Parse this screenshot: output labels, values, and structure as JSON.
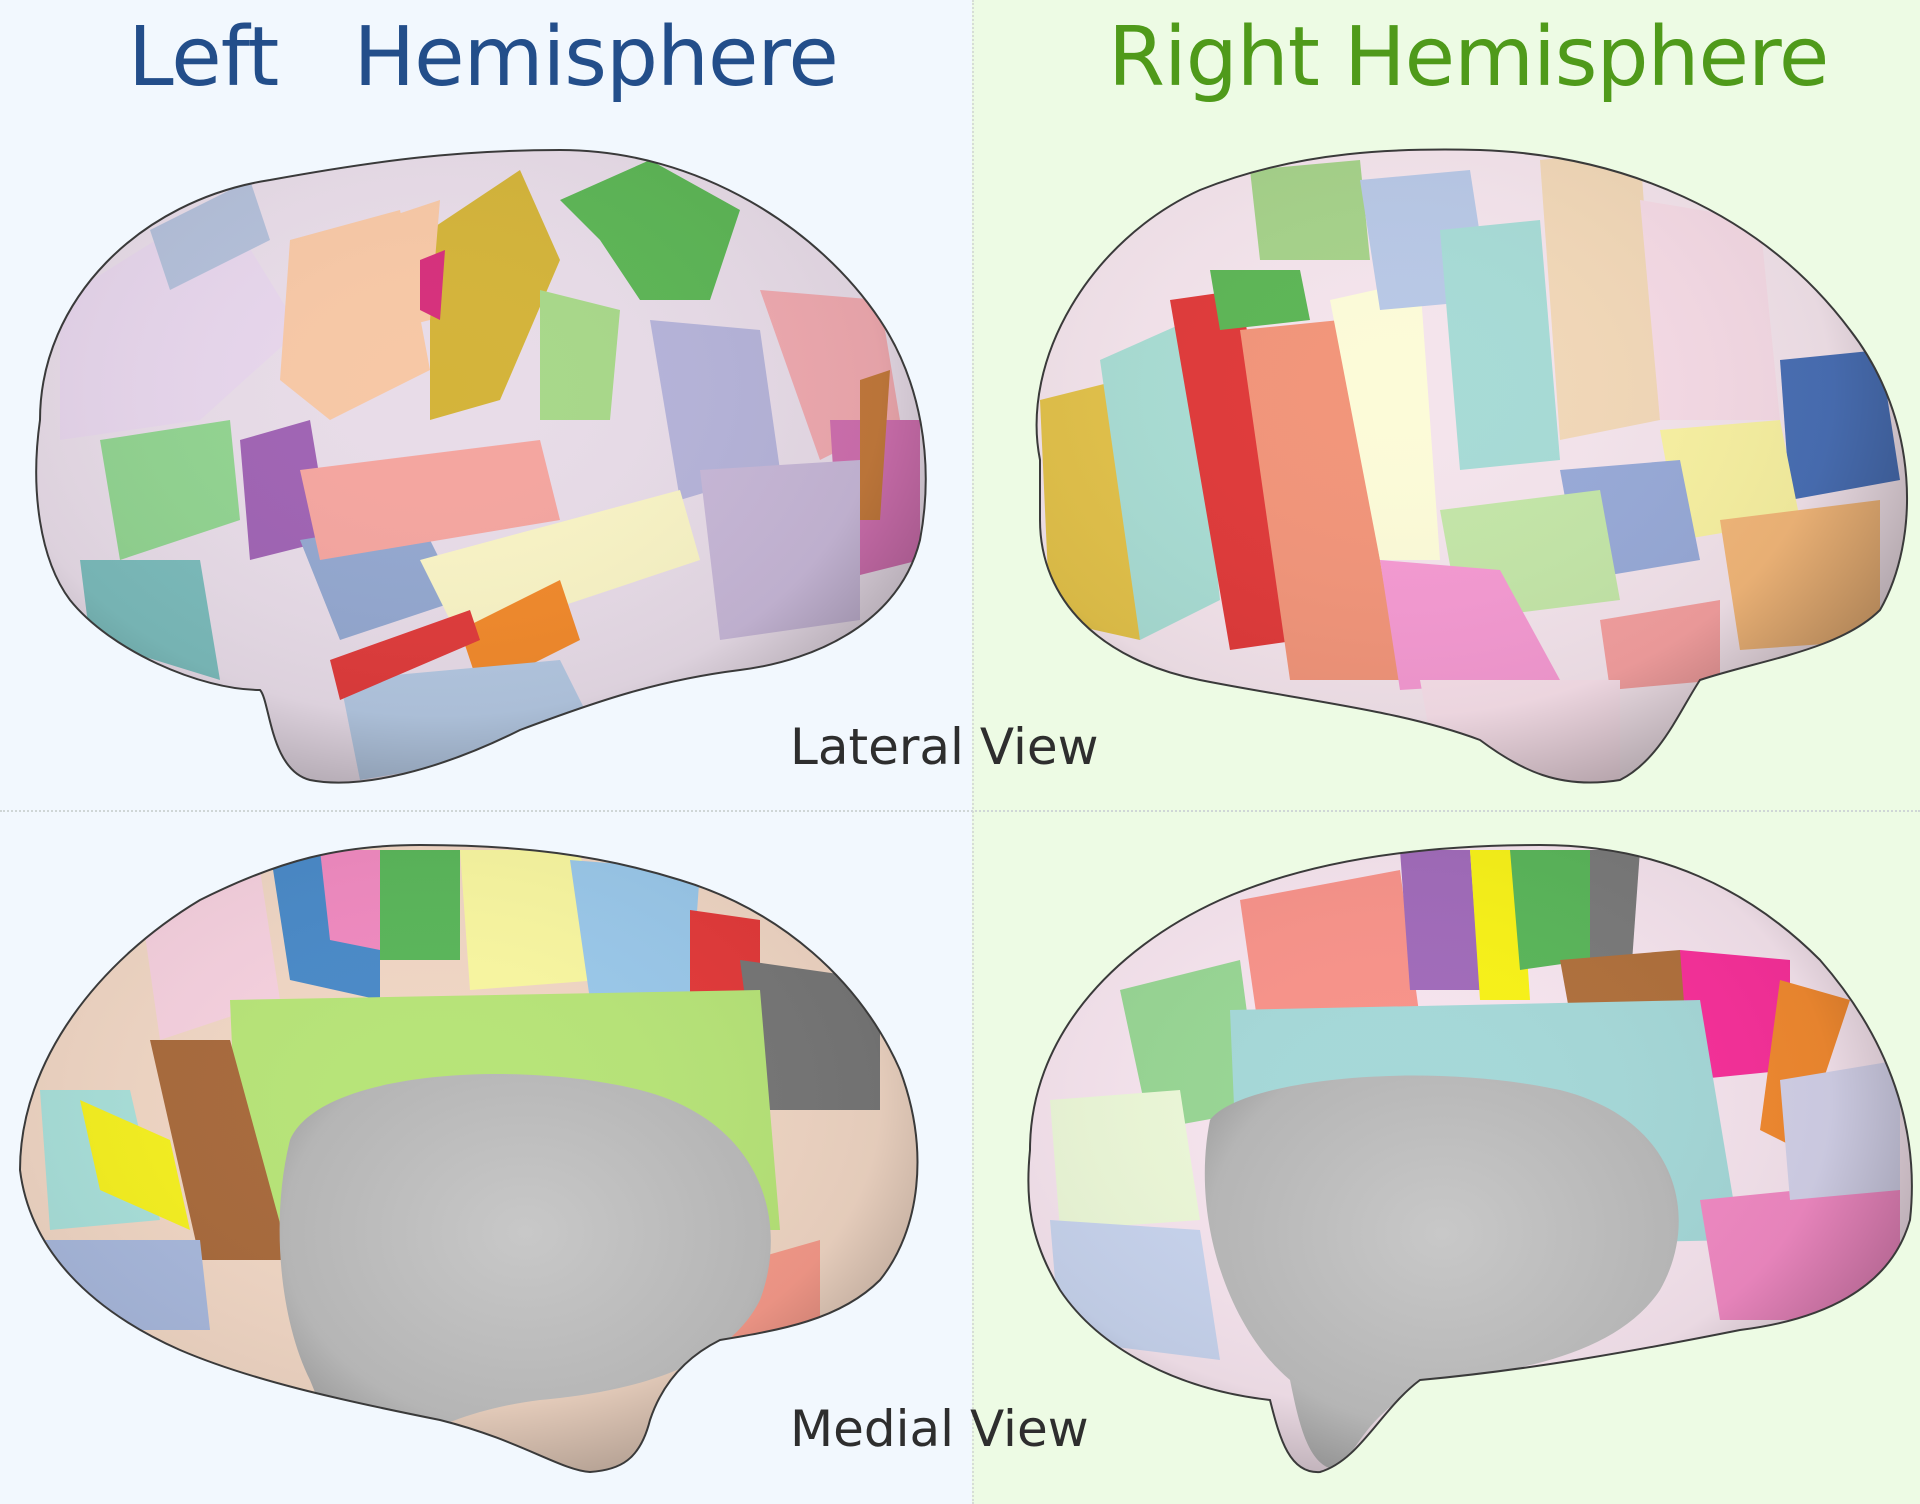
{
  "titles": {
    "left": "Left   Hemisphere",
    "right": "Right Hemisphere"
  },
  "view_labels": {
    "lateral": "Lateral View",
    "medial": "Medial View"
  },
  "colors": {
    "left_title": "#234e8a",
    "right_title": "#4f9a1a",
    "left_background": "#f2f8fe",
    "right_background": "#edfbe4",
    "wall_gray": "#bdbdbd"
  },
  "panels": [
    {
      "hemisphere": "left",
      "view": "lateral",
      "icon": "brain-surface-parcellation"
    },
    {
      "hemisphere": "right",
      "view": "lateral",
      "icon": "brain-surface-parcellation"
    },
    {
      "hemisphere": "left",
      "view": "medial",
      "icon": "brain-surface-parcellation"
    },
    {
      "hemisphere": "right",
      "view": "medial",
      "icon": "brain-surface-parcellation"
    }
  ]
}
